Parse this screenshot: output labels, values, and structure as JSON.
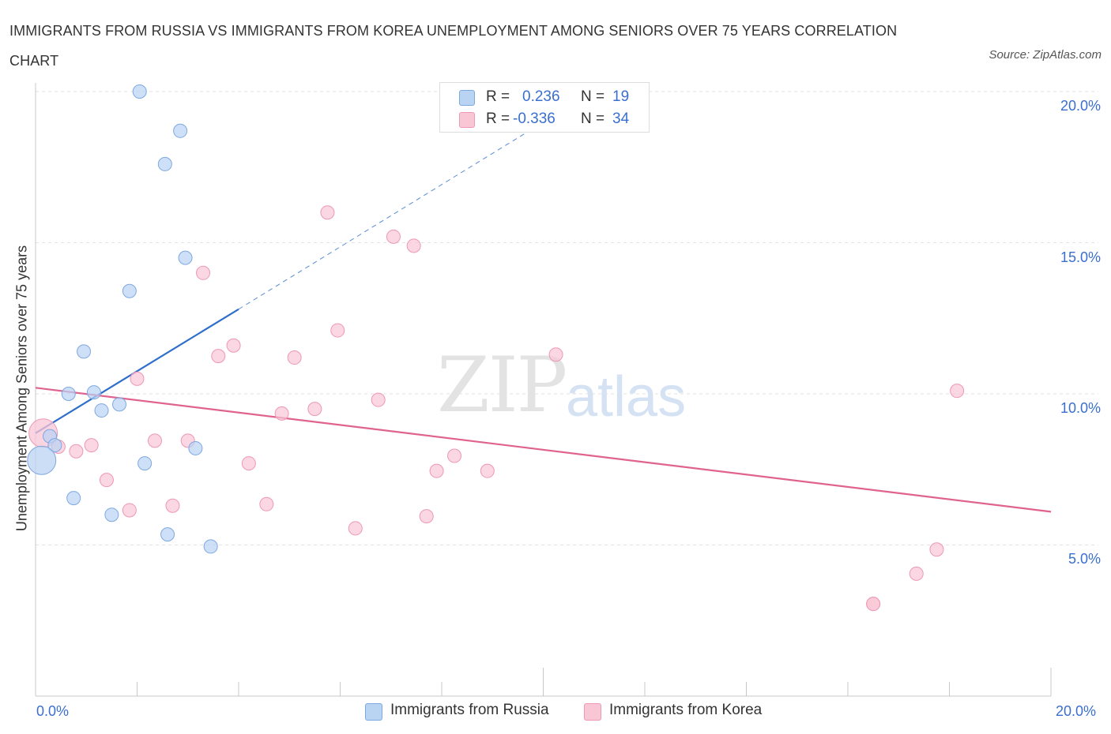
{
  "title": "IMMIGRANTS FROM RUSSIA VS IMMIGRANTS FROM KOREA UNEMPLOYMENT AMONG SENIORS OVER 75 YEARS CORRELATION CHART",
  "source": "Source: ZipAtlas.com",
  "watermark": {
    "zip": "ZIP",
    "atlas": "atlas"
  },
  "legend": {
    "r_label": "R =",
    "n_label": "N =",
    "russia": {
      "r": "0.236",
      "n": "19"
    },
    "korea": {
      "r": "-0.336",
      "n": "34"
    }
  },
  "colors": {
    "russia_fill": "#b9d3f3",
    "russia_stroke": "#7ea8e0",
    "russia_line": "#2f6fcc",
    "korea_fill": "#f8c6d5",
    "korea_stroke": "#ee98b3",
    "korea_line": "#e0628e",
    "tick_text": "#3a6fd0"
  },
  "chart_data": {
    "type": "scatter",
    "title": "IMMIGRANTS FROM RUSSIA VS IMMIGRANTS FROM KOREA UNEMPLOYMENT AMONG SENIORS OVER 75 YEARS CORRELATION CHART",
    "xlabel": "",
    "ylabel": "Unemployment Among Seniors over 75 years",
    "xlim": [
      0,
      20
    ],
    "ylim": [
      0,
      20.5
    ],
    "x_tick_labels": [
      "0.0%",
      "20.0%"
    ],
    "y_ticks": [
      5,
      10,
      15,
      20
    ],
    "y_tick_labels": [
      "5.0%",
      "10.0%",
      "15.0%",
      "20.0%"
    ],
    "grid": true,
    "series": [
      {
        "name": "Immigrants from Russia",
        "r": 0.236,
        "n": 19,
        "trend": {
          "x0": 0.0,
          "y0": 8.7,
          "x1": 4.0,
          "y1": 12.8,
          "dashed_to_x": 10.5,
          "dashed_to_y": 19.5
        },
        "points": [
          {
            "x": 2.05,
            "y": 20.0,
            "big": false
          },
          {
            "x": 2.85,
            "y": 18.7,
            "big": false
          },
          {
            "x": 2.55,
            "y": 17.6,
            "big": false
          },
          {
            "x": 2.95,
            "y": 14.5,
            "big": false
          },
          {
            "x": 1.85,
            "y": 13.4,
            "big": false
          },
          {
            "x": 0.95,
            "y": 11.4,
            "big": false
          },
          {
            "x": 0.65,
            "y": 10.0,
            "big": false
          },
          {
            "x": 1.15,
            "y": 10.05,
            "big": false
          },
          {
            "x": 1.65,
            "y": 9.65,
            "big": false
          },
          {
            "x": 1.3,
            "y": 9.45,
            "big": false
          },
          {
            "x": 0.28,
            "y": 8.6,
            "big": false
          },
          {
            "x": 0.38,
            "y": 8.3,
            "big": false
          },
          {
            "x": 3.15,
            "y": 8.2,
            "big": false
          },
          {
            "x": 2.15,
            "y": 7.7,
            "big": false
          },
          {
            "x": 0.12,
            "y": 7.8,
            "big": true
          },
          {
            "x": 0.75,
            "y": 6.55,
            "big": false
          },
          {
            "x": 1.5,
            "y": 6.0,
            "big": false
          },
          {
            "x": 2.6,
            "y": 5.35,
            "big": false
          },
          {
            "x": 3.45,
            "y": 4.95,
            "big": false
          }
        ]
      },
      {
        "name": "Immigrants from Korea",
        "r": -0.336,
        "n": 34,
        "trend": {
          "x0": 0.0,
          "y0": 10.2,
          "x1": 20.0,
          "y1": 6.1
        },
        "points": [
          {
            "x": 5.75,
            "y": 16.0,
            "big": false
          },
          {
            "x": 7.05,
            "y": 15.2,
            "big": false
          },
          {
            "x": 7.45,
            "y": 14.9,
            "big": false
          },
          {
            "x": 3.3,
            "y": 14.0,
            "big": false
          },
          {
            "x": 5.95,
            "y": 12.1,
            "big": false
          },
          {
            "x": 3.9,
            "y": 11.6,
            "big": false
          },
          {
            "x": 3.6,
            "y": 11.25,
            "big": false
          },
          {
            "x": 5.1,
            "y": 11.2,
            "big": false
          },
          {
            "x": 10.25,
            "y": 11.3,
            "big": false
          },
          {
            "x": 2.0,
            "y": 10.5,
            "big": false
          },
          {
            "x": 6.75,
            "y": 9.8,
            "big": false
          },
          {
            "x": 5.5,
            "y": 9.5,
            "big": false
          },
          {
            "x": 4.85,
            "y": 9.35,
            "big": false
          },
          {
            "x": 18.15,
            "y": 10.1,
            "big": false
          },
          {
            "x": 0.15,
            "y": 8.7,
            "big": true
          },
          {
            "x": 0.45,
            "y": 8.25,
            "big": false
          },
          {
            "x": 0.8,
            "y": 8.1,
            "big": false
          },
          {
            "x": 1.1,
            "y": 8.3,
            "big": false
          },
          {
            "x": 2.35,
            "y": 8.45,
            "big": false
          },
          {
            "x": 3.0,
            "y": 8.45,
            "big": false
          },
          {
            "x": 8.25,
            "y": 7.95,
            "big": false
          },
          {
            "x": 4.2,
            "y": 7.7,
            "big": false
          },
          {
            "x": 7.9,
            "y": 7.45,
            "big": false
          },
          {
            "x": 8.9,
            "y": 7.45,
            "big": false
          },
          {
            "x": 1.4,
            "y": 7.15,
            "big": false
          },
          {
            "x": 2.7,
            "y": 6.3,
            "big": false
          },
          {
            "x": 4.55,
            "y": 6.35,
            "big": false
          },
          {
            "x": 1.85,
            "y": 6.15,
            "big": false
          },
          {
            "x": 7.7,
            "y": 5.95,
            "big": false
          },
          {
            "x": 6.3,
            "y": 5.55,
            "big": false
          },
          {
            "x": 17.75,
            "y": 4.85,
            "big": false
          },
          {
            "x": 17.35,
            "y": 4.05,
            "big": false
          },
          {
            "x": 16.5,
            "y": 3.05,
            "big": false
          },
          {
            "x": 16.5,
            "y": 3.05,
            "big": false
          }
        ]
      }
    ]
  }
}
